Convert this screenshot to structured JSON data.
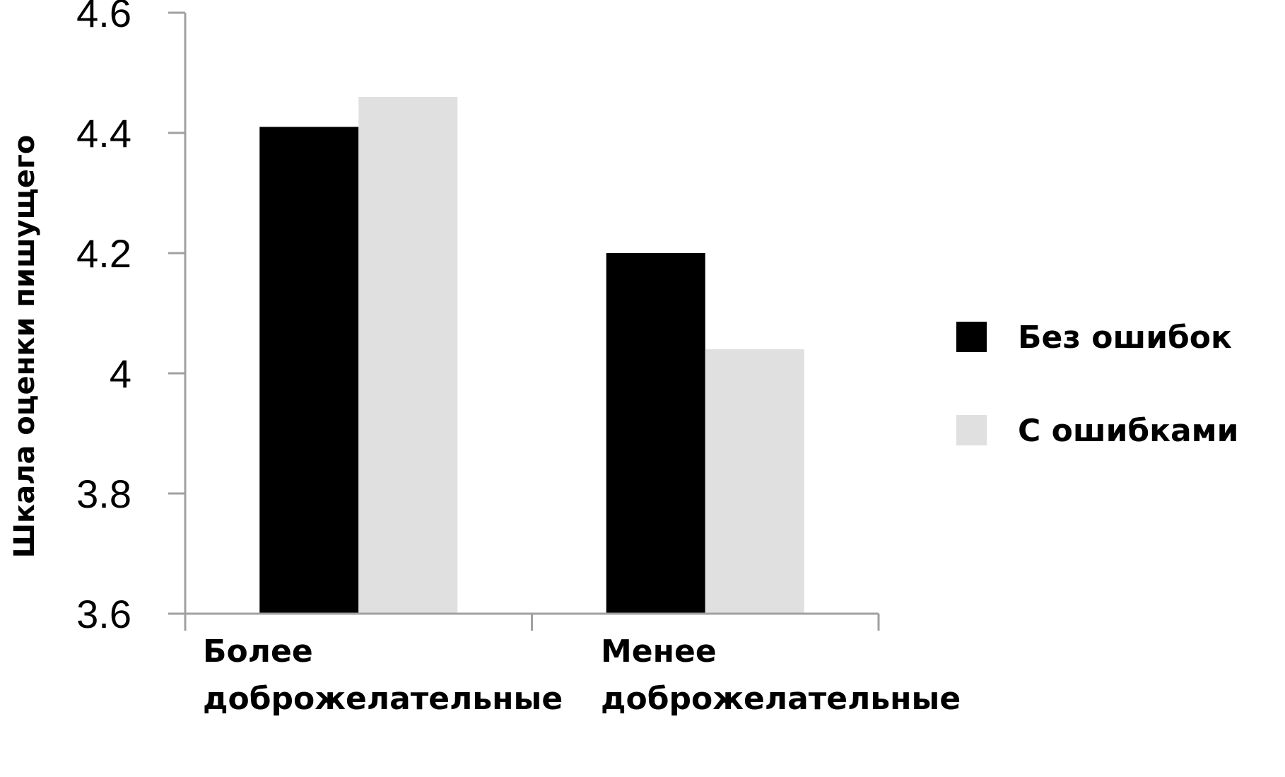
{
  "chart_data": {
    "type": "bar",
    "categories": [
      [
        "Более",
        "доброжелательные"
      ],
      [
        "Менее",
        "доброжелательные"
      ]
    ],
    "series": [
      {
        "name": "Без ошибок",
        "values": [
          4.41,
          4.2
        ],
        "color": "#000000"
      },
      {
        "name": "С ошибками",
        "values": [
          4.46,
          4.04
        ],
        "color": "#e0e0e0"
      }
    ],
    "title": "",
    "xlabel": "",
    "ylabel": "Шкала оценки пишущего",
    "ylim": [
      3.6,
      4.6
    ],
    "yticks": [
      "3.6",
      "3.8",
      "4",
      "4.2",
      "4.4",
      "4.6"
    ],
    "ytick_values": [
      3.6,
      3.8,
      4.0,
      4.2,
      4.4,
      4.6
    ],
    "grid": false,
    "legend": "right",
    "axis_color": "#a0a0a0"
  }
}
